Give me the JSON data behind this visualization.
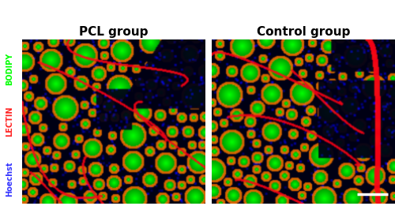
{
  "title_left": "PCL group",
  "title_right": "Control group",
  "title_fontsize": 11,
  "title_fontweight": "bold",
  "ylabel_hoechst": "Hoechst",
  "ylabel_lectin": "LECTIN",
  "ylabel_bodipy": "BODIPY",
  "ylabel_hoechst_color": "#3333ff",
  "ylabel_lectin_color": "#ff2222",
  "ylabel_bodipy_color": "#00ff00",
  "ylabel_fontsize": 7,
  "fig_bg": "#ffffff",
  "panel_border_color": "#cccccc",
  "scale_bar_color": "#ffffff"
}
